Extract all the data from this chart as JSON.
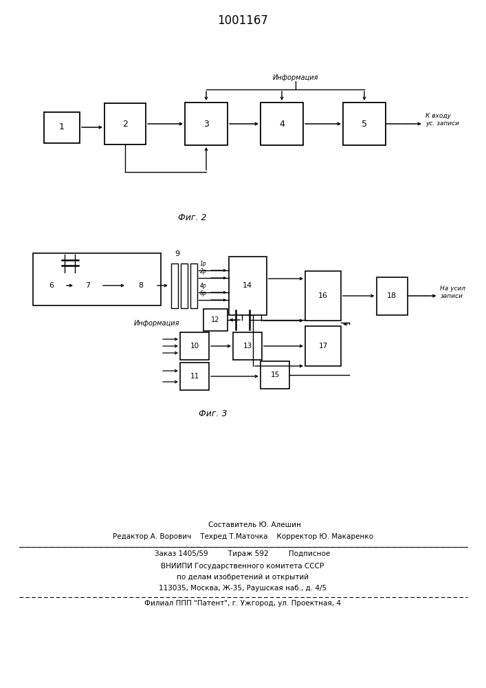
{
  "title": "1001167",
  "fig2_label": "Фиг. 2",
  "fig3_label": "Фиг. 3",
  "bg_color": "#ffffff",
  "line_color": "#000000",
  "text_color": "#000000",
  "footer": {
    "line1": "Составитель Ю. Алешин",
    "line2": "Редактор А. Ворович    Техред Т.Маточка    Корректор Ю. Макаренко",
    "line3": "Заказ 1405/59         Тираж 592         Подписное",
    "line4": "ВНИИПИ Государственного комитета СССР",
    "line5": "по делам изобретений и открытий",
    "line6": "113035, Москва, Ж-35, Раушская наб., д. 4/5",
    "line7": "Филиал ППП \"Патент\", г. Ужгород, ул. Проектная, 4"
  }
}
